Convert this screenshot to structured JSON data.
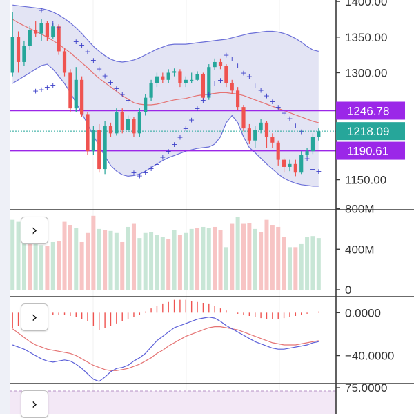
{
  "colors": {
    "up": "#26a69a",
    "down": "#ef5350",
    "bollinger_fill": "#e3e4f4",
    "bollinger_line": "#6b6fd8",
    "middle_band": "#e57373",
    "sar": "#3b3fc8",
    "marker": "#9b27e8",
    "current": "#26a69a",
    "volume_up": "#c8e6d6",
    "volume_down": "#f7c4c4",
    "macd_line": "#5b5fd8",
    "signal_line": "#e57373"
  },
  "icons": {
    "expand": "chevron-right-icon"
  },
  "expand_glyph": "›",
  "chart_data": [
    {
      "type": "candlestick",
      "y_ticks": [
        "1400.00",
        "1350.00",
        "1300.00",
        "1150.00"
      ],
      "y_tick_values": [
        1400,
        1350,
        1300,
        1150
      ],
      "ylim": [
        1108,
        1402
      ],
      "price_markers": [
        {
          "label": "1246.78",
          "value": 1246.78
        },
        {
          "label": "1218.09",
          "value": 1218.09
        },
        {
          "label": "1190.61",
          "value": 1190.61
        }
      ],
      "current_price": "1218.09",
      "horizontal_lines": [
        1246.78,
        1190.61
      ],
      "candles": [
        [
          1300,
          1350,
          1385,
          1295
        ],
        [
          1350,
          1315,
          1358,
          1300
        ],
        [
          1315,
          1338,
          1345,
          1310
        ],
        [
          1338,
          1360,
          1366,
          1332
        ],
        [
          1360,
          1355,
          1372,
          1350
        ],
        [
          1355,
          1370,
          1375,
          1345
        ],
        [
          1370,
          1350,
          1372,
          1345
        ],
        [
          1350,
          1365,
          1370,
          1348
        ],
        [
          1365,
          1330,
          1368,
          1325
        ],
        [
          1330,
          1300,
          1334,
          1295
        ],
        [
          1300,
          1250,
          1305,
          1245
        ],
        [
          1250,
          1290,
          1308,
          1245
        ],
        [
          1290,
          1242,
          1295,
          1238
        ],
        [
          1242,
          1190,
          1245,
          1185
        ],
        [
          1190,
          1220,
          1225,
          1185
        ],
        [
          1220,
          1165,
          1228,
          1160
        ],
        [
          1165,
          1225,
          1232,
          1158
        ],
        [
          1225,
          1215,
          1230,
          1210
        ],
        [
          1215,
          1245,
          1250,
          1212
        ],
        [
          1245,
          1220,
          1250,
          1215
        ],
        [
          1220,
          1235,
          1240,
          1218
        ],
        [
          1235,
          1215,
          1238,
          1210
        ],
        [
          1215,
          1245,
          1250,
          1210
        ],
        [
          1245,
          1265,
          1270,
          1240
        ],
        [
          1265,
          1285,
          1290,
          1260
        ],
        [
          1285,
          1295,
          1300,
          1280
        ],
        [
          1295,
          1290,
          1300,
          1285
        ],
        [
          1290,
          1300,
          1305,
          1285
        ],
        [
          1300,
          1302,
          1306,
          1295
        ],
        [
          1302,
          1285,
          1305,
          1280
        ],
        [
          1285,
          1290,
          1295,
          1280
        ],
        [
          1290,
          1290,
          1300,
          1285
        ],
        [
          1290,
          1298,
          1302,
          1288
        ],
        [
          1298,
          1265,
          1300,
          1262
        ],
        [
          1265,
          1308,
          1312,
          1262
        ],
        [
          1308,
          1315,
          1320,
          1304
        ],
        [
          1315,
          1310,
          1320,
          1305
        ],
        [
          1310,
          1285,
          1312,
          1280
        ],
        [
          1285,
          1275,
          1290,
          1270
        ],
        [
          1275,
          1252,
          1280,
          1248
        ],
        [
          1252,
          1222,
          1255,
          1218
        ],
        [
          1222,
          1205,
          1228,
          1200
        ],
        [
          1205,
          1220,
          1225,
          1195
        ],
        [
          1220,
          1230,
          1235,
          1215
        ],
        [
          1230,
          1210,
          1232,
          1195
        ],
        [
          1210,
          1202,
          1215,
          1195
        ],
        [
          1202,
          1178,
          1205,
          1170
        ],
        [
          1178,
          1168,
          1180,
          1160
        ],
        [
          1168,
          1172,
          1178,
          1162
        ],
        [
          1172,
          1160,
          1178,
          1155
        ],
        [
          1160,
          1185,
          1190,
          1158
        ],
        [
          1185,
          1190,
          1195,
          1182
        ],
        [
          1190,
          1210,
          1215,
          1186
        ],
        [
          1210,
          1218,
          1222,
          1205
        ]
      ],
      "bollinger": {
        "upper": [
          1395,
          1394,
          1393,
          1392,
          1391,
          1390,
          1388,
          1385,
          1381,
          1376,
          1370,
          1363,
          1355,
          1346,
          1337,
          1330,
          1324,
          1319,
          1316,
          1315,
          1316,
          1318,
          1321,
          1325,
          1329,
          1333,
          1336,
          1339,
          1340,
          1340,
          1340,
          1341,
          1342,
          1343,
          1344,
          1345,
          1346,
          1347,
          1349,
          1351,
          1353,
          1355,
          1356,
          1357,
          1358,
          1358,
          1357,
          1355,
          1352,
          1348,
          1343,
          1337,
          1332,
          1330
        ],
        "middle": [
          1375,
          1370,
          1366,
          1362,
          1358,
          1354,
          1350,
          1345,
          1340,
          1334,
          1328,
          1321,
          1314,
          1307,
          1299,
          1292,
          1286,
          1280,
          1274,
          1268,
          1263,
          1258,
          1256,
          1255,
          1255,
          1256,
          1258,
          1260,
          1262,
          1263,
          1264,
          1266,
          1268,
          1269,
          1270,
          1271,
          1272,
          1272,
          1271,
          1270,
          1268,
          1265,
          1262,
          1259,
          1256,
          1253,
          1250,
          1247,
          1244,
          1241,
          1238,
          1235,
          1232,
          1230
        ],
        "lower": [
          1285,
          1290,
          1295,
          1300,
          1305,
          1310,
          1312,
          1305,
          1295,
          1285,
          1272,
          1258,
          1243,
          1228,
          1212,
          1197,
          1183,
          1170,
          1162,
          1157,
          1155,
          1156,
          1158,
          1162,
          1167,
          1172,
          1177,
          1181,
          1184,
          1187,
          1190,
          1192,
          1194,
          1195,
          1196,
          1200,
          1210,
          1230,
          1240,
          1230,
          1210,
          1195,
          1188,
          1180,
          1172,
          1165,
          1158,
          1152,
          1148,
          1145,
          1143,
          1142,
          1141,
          1141
        ]
      },
      "sar": [
        [
          5,
          1388
        ],
        [
          7,
          1370
        ],
        [
          8,
          1364
        ],
        [
          11,
          1344
        ],
        [
          12,
          1339
        ],
        [
          13,
          1330
        ],
        [
          14,
          1318
        ],
        [
          15,
          1306
        ],
        [
          16,
          1296
        ],
        [
          17,
          1287
        ],
        [
          18,
          1278
        ],
        [
          19,
          1270
        ],
        [
          20,
          1262
        ],
        [
          4,
          1275
        ],
        [
          5,
          1277
        ],
        [
          6,
          1280
        ],
        [
          7,
          1283
        ],
        [
          21,
          1160
        ],
        [
          22,
          1156
        ],
        [
          23,
          1160
        ],
        [
          24,
          1166
        ],
        [
          25,
          1172
        ],
        [
          26,
          1182
        ],
        [
          27,
          1190
        ],
        [
          28,
          1200
        ],
        [
          29,
          1210
        ],
        [
          30,
          1222
        ],
        [
          31,
          1234
        ],
        [
          32,
          1250
        ],
        [
          33,
          1262
        ],
        [
          34,
          1270
        ],
        [
          35,
          1286
        ],
        [
          36,
          1290
        ],
        [
          37,
          1325
        ],
        [
          38,
          1320
        ],
        [
          39,
          1310
        ],
        [
          40,
          1300
        ],
        [
          41,
          1295
        ],
        [
          42,
          1282
        ],
        [
          43,
          1276
        ],
        [
          44,
          1268
        ],
        [
          45,
          1260
        ],
        [
          46,
          1252
        ],
        [
          47,
          1244
        ],
        [
          48,
          1236
        ],
        [
          49,
          1226
        ],
        [
          50,
          1218
        ],
        [
          51,
          1180
        ],
        [
          52,
          1165
        ],
        [
          53,
          1162
        ]
      ]
    },
    {
      "type": "bar",
      "y_ticks": [
        "800M",
        "400M",
        "0"
      ],
      "y_tick_values": [
        800,
        400,
        0
      ],
      "ylim": [
        0,
        790
      ],
      "values": [
        690,
        670,
        640,
        460,
        460,
        440,
        430,
        470,
        480,
        670,
        640,
        610,
        470,
        560,
        730,
        600,
        590,
        580,
        560,
        470,
        620,
        650,
        510,
        560,
        570,
        540,
        520,
        500,
        590,
        540,
        560,
        600,
        610,
        620,
        610,
        620,
        590,
        420,
        650,
        720,
        650,
        660,
        600,
        570,
        690,
        640,
        620,
        520,
        420,
        420,
        450,
        520,
        530,
        510
      ],
      "up_flags": [
        1,
        1,
        1,
        0,
        1,
        1,
        0,
        1,
        0,
        0,
        0,
        1,
        0,
        0,
        0,
        1,
        0,
        1,
        1,
        0,
        1,
        0,
        1,
        1,
        1,
        1,
        1,
        0,
        1,
        0,
        1,
        1,
        0,
        1,
        1,
        0,
        0,
        1,
        0,
        1,
        0,
        0,
        1,
        0,
        0,
        0,
        0,
        0,
        1,
        0,
        1,
        1,
        1,
        1
      ]
    },
    {
      "type": "bar+line",
      "y_ticks": [
        "0.0000",
        "−40.0000"
      ],
      "y_tick_values": [
        0,
        -40
      ],
      "ylim": [
        -66,
        15
      ],
      "histogram": [
        -14,
        -12,
        -10,
        -8,
        -6,
        -4,
        -3,
        -2,
        -2,
        -2,
        -3,
        -4,
        -6,
        -8,
        -12,
        -16,
        -14,
        -12,
        -10,
        -8,
        -6,
        -4,
        -2,
        1,
        4,
        6,
        8,
        10,
        12,
        12,
        12,
        11,
        10,
        9,
        8,
        6,
        4,
        2,
        0,
        -1,
        -2,
        -3,
        -4,
        -5,
        -6,
        -6,
        -6,
        -5,
        -4,
        -3,
        -2,
        -1,
        0,
        1
      ],
      "macd": [
        -30,
        -32,
        -34,
        -37,
        -40,
        -43,
        -45,
        -46,
        -45,
        -44,
        -45,
        -48,
        -52,
        -57,
        -62,
        -64,
        -60,
        -55,
        -52,
        -51,
        -49,
        -45,
        -42,
        -38,
        -32,
        -26,
        -22,
        -18,
        -14,
        -12,
        -10,
        -8,
        -6,
        -5,
        -4,
        -5,
        -8,
        -12,
        -15,
        -18,
        -21,
        -24,
        -27,
        -29,
        -31,
        -33,
        -34,
        -34,
        -33,
        -32,
        -31,
        -30,
        -28,
        -27
      ],
      "signal": [
        -15,
        -19,
        -23,
        -27,
        -30,
        -32,
        -34,
        -35,
        -36,
        -37,
        -38,
        -40,
        -43,
        -46,
        -49,
        -51,
        -53,
        -54,
        -54,
        -53,
        -52,
        -50,
        -48,
        -45,
        -42,
        -38,
        -35,
        -31,
        -28,
        -25,
        -22,
        -20,
        -18,
        -16,
        -14,
        -13,
        -13,
        -14,
        -15,
        -16,
        -18,
        -20,
        -22,
        -24,
        -26,
        -28,
        -29,
        -30,
        -30,
        -30,
        -29,
        -28,
        -27,
        -26
      ]
    },
    {
      "type": "line",
      "y_ticks": [
        "75.0000"
      ],
      "y_tick_values": [
        75
      ],
      "ylim": [
        0,
        100
      ]
    }
  ]
}
